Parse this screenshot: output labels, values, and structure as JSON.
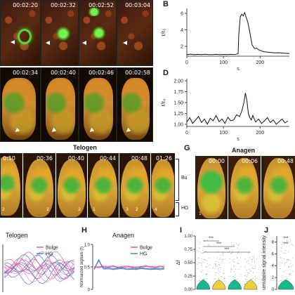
{
  "panel_letters": {
    "B": "B",
    "D": "D",
    "G": "G",
    "H": "H",
    "I": "I",
    "J": "J"
  },
  "row_a": {
    "timestamps": [
      "00:02:20",
      "00:02:32",
      "00:02:52",
      "00:03:04"
    ]
  },
  "row_c": {
    "timestamps": [
      "00:02:34",
      "00:02:40",
      "00:02:46",
      "00:02:58"
    ]
  },
  "telogen_row": {
    "title": "Telogen",
    "timestamps": [
      "0:10",
      "00:36",
      "00:40",
      "00:44",
      "00:48",
      "01:26"
    ],
    "bracket_labels": [
      "Bu",
      "HG"
    ],
    "cell_numbers": [
      "2",
      "2",
      "2",
      "1",
      "3",
      "2",
      "4"
    ]
  },
  "anagen_row": {
    "title": "Anagen",
    "timestamps": [
      "00:00",
      "00:06",
      "00:48"
    ],
    "cell_numbers": [
      "1"
    ]
  },
  "bottom_titles": {
    "telogen": "Telogen",
    "anagen": "Anagen"
  },
  "legend": {
    "bulge": "Bulge",
    "hg": "HG"
  },
  "colors": {
    "bulge": "#e05a9a",
    "hg": "#3a86c8",
    "green_signal": "#6cf040",
    "violin_green": "#18b890",
    "violin_yellow": "#e8d040"
  },
  "chart_data": [
    {
      "type": "line",
      "panel": "B",
      "xlabel": "s",
      "ylabel": "r/r₀",
      "xticks": [
        "0",
        "100",
        "200"
      ],
      "yticks": [
        "2",
        "4",
        "6"
      ],
      "xlim": [
        0,
        280
      ],
      "ylim": [
        0.8,
        6.6
      ],
      "series": [
        {
          "x": [
            0,
            10,
            20,
            30,
            40,
            50,
            60,
            70,
            80,
            90,
            100,
            110,
            120,
            130,
            140,
            142,
            146,
            150,
            154,
            158,
            162,
            166,
            170,
            174,
            178,
            182,
            186,
            190,
            195,
            200,
            210,
            220,
            230,
            240,
            250,
            260,
            270,
            280
          ],
          "values": [
            1.0,
            1.05,
            0.98,
            1.02,
            1.0,
            1.04,
            0.99,
            1.0,
            1.02,
            0.98,
            1.01,
            1.0,
            1.02,
            0.99,
            1.1,
            3.5,
            5.6,
            5.9,
            5.7,
            6.1,
            5.5,
            5.0,
            4.2,
            3.2,
            2.2,
            1.9,
            1.7,
            1.8,
            1.6,
            1.5,
            1.35,
            1.3,
            1.25,
            1.2,
            1.22,
            1.18,
            1.15,
            1.12
          ]
        }
      ]
    },
    {
      "type": "line",
      "panel": "D",
      "xlabel": "s",
      "ylabel": "r/r₀",
      "xticks": [
        "0",
        "100",
        "200"
      ],
      "yticks": [
        "1.00",
        "1.25",
        "1.50",
        "1.75",
        "2.00"
      ],
      "xlim": [
        0,
        280
      ],
      "ylim": [
        0.95,
        2.05
      ],
      "series": [
        {
          "x": [
            0,
            8,
            16,
            24,
            32,
            40,
            48,
            56,
            64,
            72,
            80,
            88,
            96,
            104,
            112,
            120,
            128,
            136,
            144,
            150,
            156,
            160,
            164,
            168,
            172,
            176,
            180,
            188,
            196,
            204,
            212,
            220,
            228,
            236,
            244,
            252,
            260,
            268,
            276
          ],
          "values": [
            1.05,
            1.15,
            1.02,
            1.1,
            1.18,
            1.04,
            1.12,
            1.0,
            1.14,
            1.08,
            1.2,
            1.06,
            1.12,
            1.02,
            1.16,
            1.08,
            1.1,
            1.22,
            1.18,
            1.3,
            1.5,
            1.72,
            1.55,
            1.25,
            1.15,
            1.1,
            1.2,
            1.05,
            1.12,
            1.02,
            1.08,
            1.15,
            1.04,
            1.1,
            1.0,
            1.06,
            1.12,
            1.03,
            1.08
          ]
        }
      ]
    },
    {
      "type": "line",
      "panel": "H",
      "ylabel": "Normalized signals (f)",
      "yticks": [
        "0",
        "0.5",
        "1.0"
      ],
      "ylim": [
        0,
        1.0
      ],
      "series": [
        {
          "name": "Bulge",
          "values": [
            0.5,
            0.49,
            0.51,
            0.5,
            0.52,
            0.49,
            0.5,
            0.51,
            0.5,
            0.49,
            0.5,
            0.52,
            0.5,
            0.49,
            0.51,
            0.5
          ]
        },
        {
          "name": "HG",
          "values": [
            0.45,
            0.65,
            0.46,
            0.47,
            0.45,
            0.46,
            0.47,
            0.45,
            0.46,
            0.45,
            0.47,
            0.46,
            0.45,
            0.46,
            0.45,
            0.46
          ]
        }
      ]
    },
    {
      "type": "violin",
      "panel": "I",
      "ylabel": "Δf",
      "yticks": [
        "0.00",
        "0.25",
        "0.50",
        "0.75",
        "1.00"
      ],
      "ylim": [
        0,
        1.0
      ],
      "significance": [
        "***",
        "***",
        "***"
      ]
    },
    {
      "type": "violin",
      "panel": "J",
      "ylabel": "umulative signal intensity",
      "yticks": [
        "0",
        "2",
        "4",
        "6",
        "8"
      ],
      "ylim": [
        0,
        9
      ],
      "significance": [
        "***",
        "***"
      ]
    }
  ]
}
